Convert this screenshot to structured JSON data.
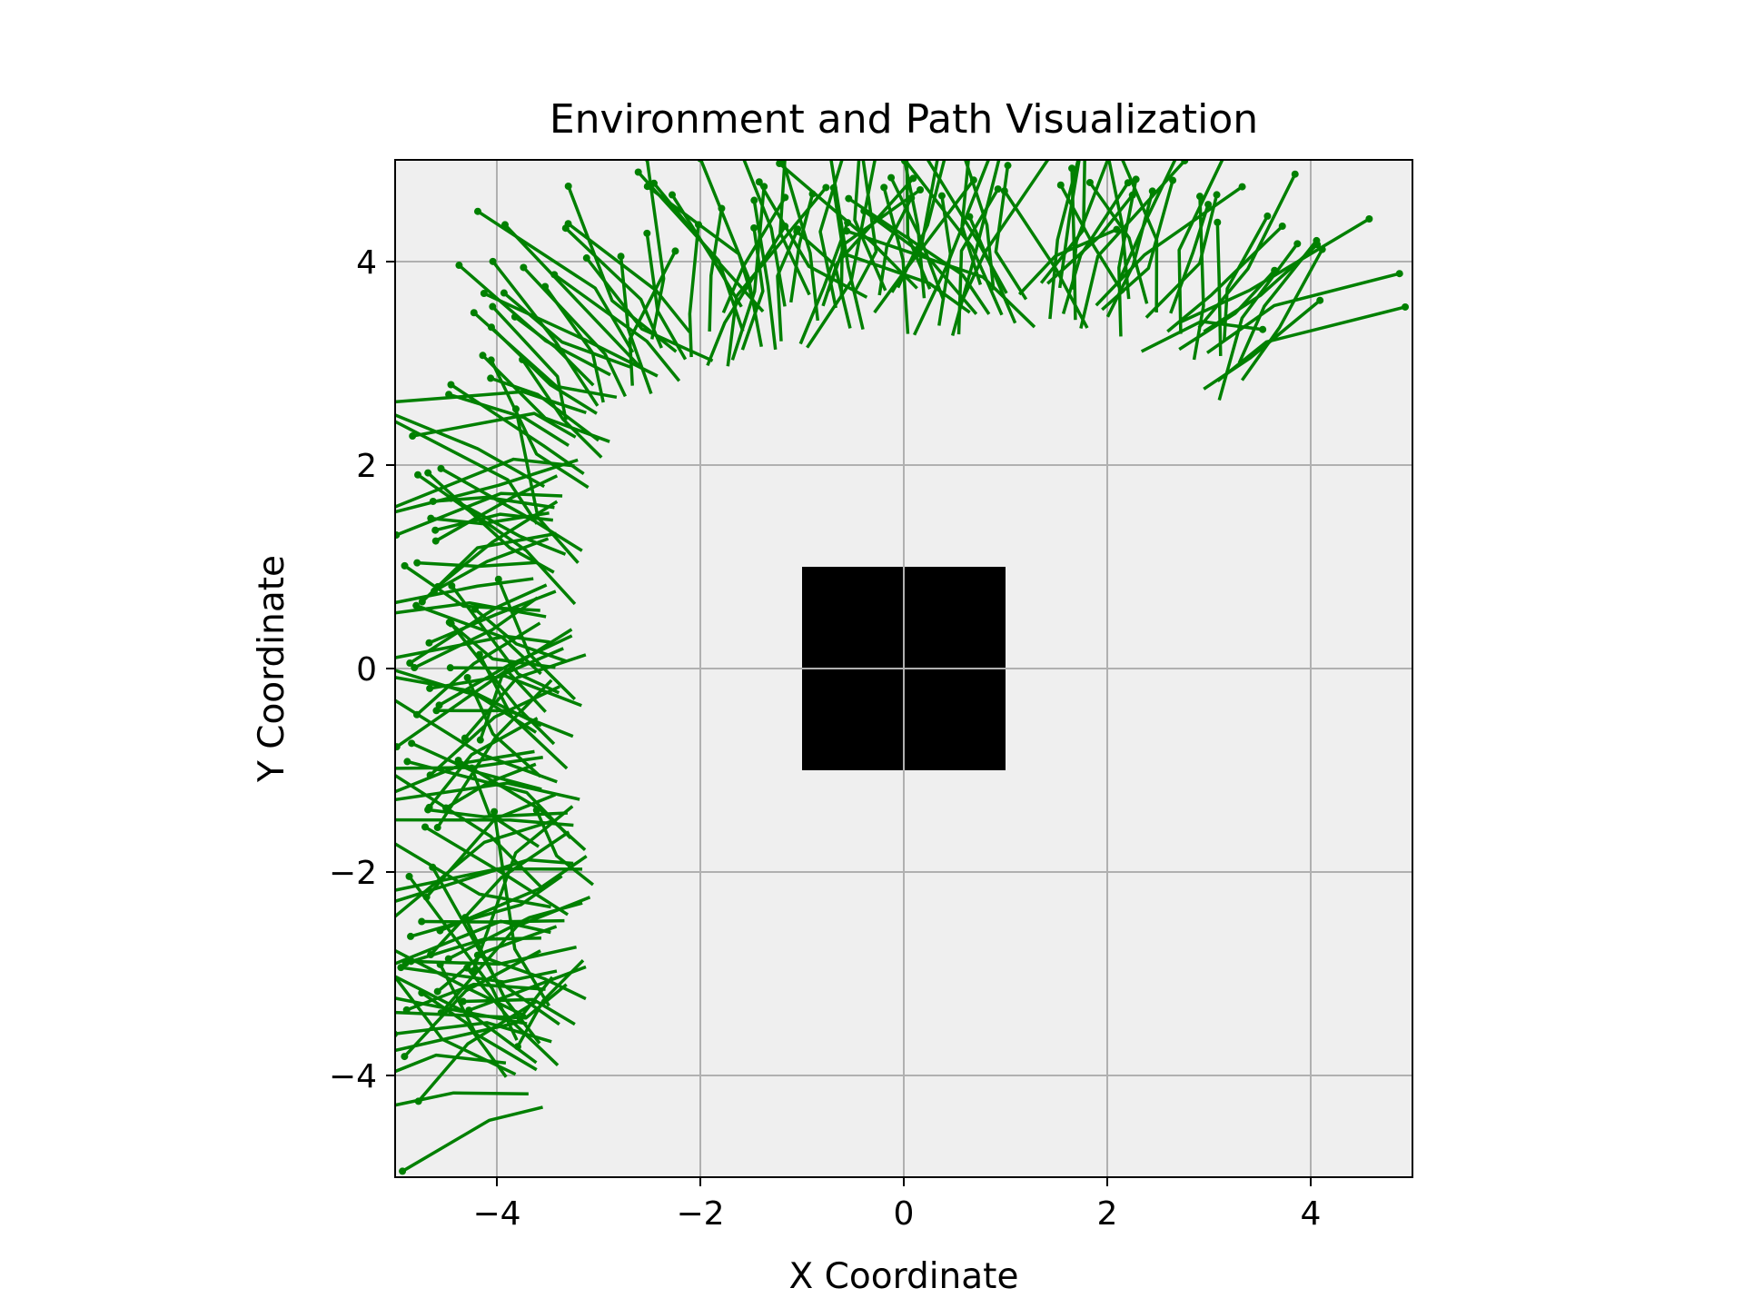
{
  "chart_data": {
    "type": "line",
    "title": "Environment and Path Visualization",
    "xlabel": "X Coordinate",
    "ylabel": "Y Coordinate",
    "xlim": [
      -5,
      5
    ],
    "ylim": [
      -5,
      5
    ],
    "xticks": [
      -4,
      -2,
      0,
      2,
      4
    ],
    "yticks": [
      -4,
      -2,
      0,
      2,
      4
    ],
    "xtick_labels": [
      "−4",
      "−2",
      "0",
      "2",
      "4"
    ],
    "ytick_labels": [
      "−4",
      "−2",
      "0",
      "2",
      "4"
    ],
    "grid": true,
    "background_color": "#efefef",
    "path_color": "#008000",
    "obstacle_color": "#000000",
    "obstacle": {
      "x": [
        -1,
        1
      ],
      "y": [
        -1,
        1
      ]
    },
    "path_centerline": [
      [
        -3.8,
        -4.2
      ],
      [
        -3.4,
        -3.3
      ],
      [
        -3.3,
        -2.0
      ],
      [
        -3.4,
        -0.5
      ],
      [
        -3.4,
        1.0
      ],
      [
        -3.2,
        2.2
      ],
      [
        -2.5,
        3.0
      ],
      [
        -1.3,
        3.4
      ],
      [
        0.0,
        3.5
      ],
      [
        1.3,
        3.6
      ],
      [
        2.2,
        3.5
      ],
      [
        2.9,
        3.1
      ],
      [
        3.3,
        2.8
      ]
    ],
    "path_count": 220,
    "arm_segment_length": 0.6
  }
}
